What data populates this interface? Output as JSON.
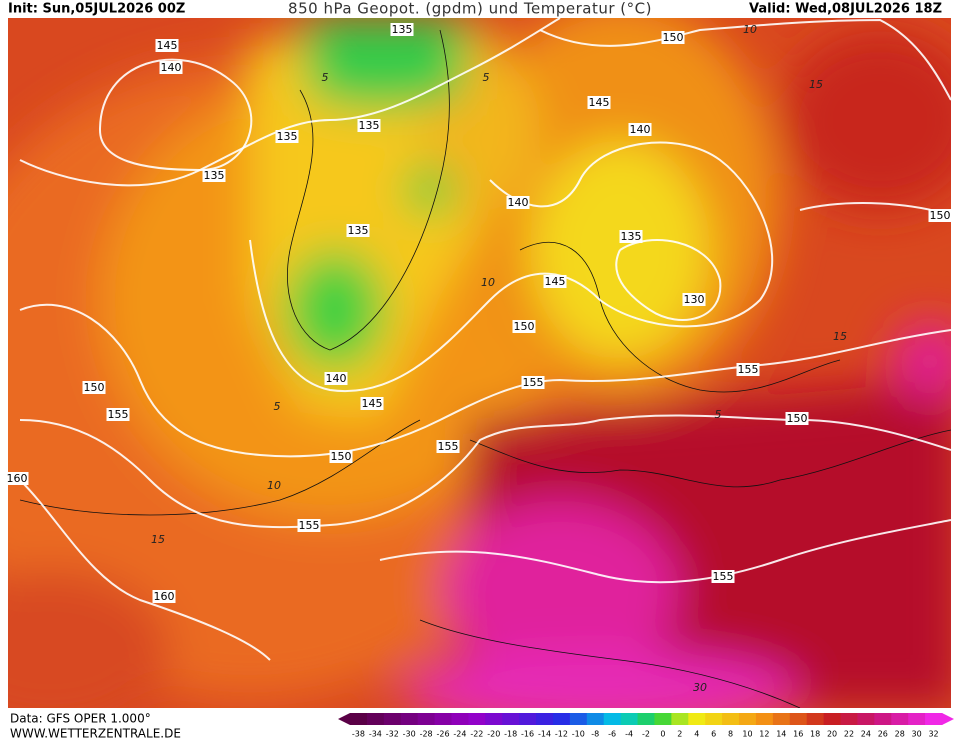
{
  "header": {
    "init": "Init: Sun,05JUL2026 00Z",
    "title": "850 hPa Geopot. (gpdm) und Temperatur (°C)",
    "valid": "Valid: Wed,08JUL2026 18Z"
  },
  "footer": {
    "data": "Data: GFS OPER 1.000°",
    "site": "WWW.WETTERZENTRALE.DE"
  },
  "contour_labels": [
    145,
    140,
    135,
    135,
    135,
    135,
    135,
    150,
    145,
    140,
    140,
    135,
    130,
    145,
    150,
    150,
    150,
    155,
    140,
    145,
    155,
    155,
    150,
    155,
    150,
    160,
    155,
    160,
    155
  ],
  "temperature_labels": [
    5,
    5,
    5,
    5,
    10,
    10,
    15,
    15,
    15,
    10,
    30
  ],
  "colorbar": {
    "labels": [
      -38,
      -34,
      -32,
      -30,
      -28,
      -26,
      -24,
      -22,
      -20,
      -18,
      -16,
      -14,
      -12,
      -10,
      -8,
      -6,
      -4,
      -2,
      0,
      2,
      4,
      6,
      8,
      10,
      12,
      14,
      16,
      18,
      20,
      22,
      24,
      26,
      28,
      30,
      32
    ]
  }
}
